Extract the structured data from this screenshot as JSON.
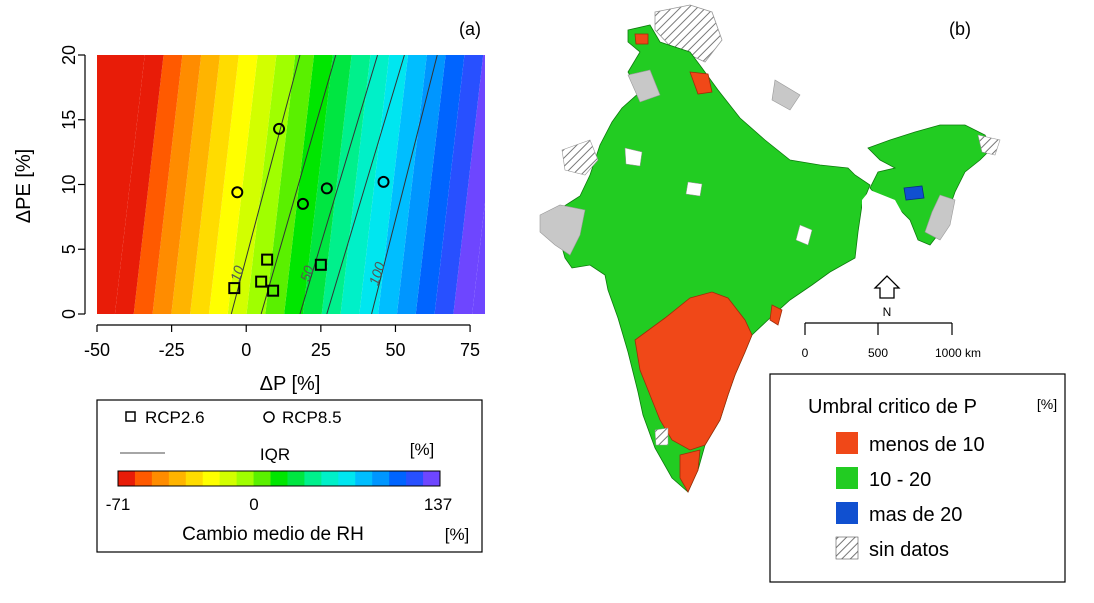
{
  "chart_data": [
    {
      "type": "contour",
      "panel_label": "(a)",
      "xlabel": "ΔP [%]",
      "ylabel": "ΔPE [%]",
      "xlim": [
        -50,
        80
      ],
      "ylim": [
        0,
        20
      ],
      "xticks": [
        "-50",
        "-25",
        "0",
        "25",
        "50",
        "75"
      ],
      "xtick_values": [
        -50,
        -25,
        0,
        25,
        50,
        75
      ],
      "yticks": [
        "0",
        "5",
        "10",
        "15",
        "20"
      ],
      "ytick_values": [
        0,
        5,
        10,
        15,
        20
      ],
      "contours": [
        {
          "label": "10",
          "x": [
            -5,
            18
          ]
        },
        {
          "label": "",
          "x": [
            5,
            30
          ]
        },
        {
          "label": "50",
          "x": [
            18,
            44
          ]
        },
        {
          "label": "",
          "x": [
            27,
            53
          ]
        },
        {
          "label": "100",
          "x": [
            42,
            64
          ]
        }
      ],
      "series": [
        {
          "name": "RCP2.6",
          "marker": "square",
          "x": [
            -4,
            5,
            7,
            9,
            25
          ],
          "y": [
            2.0,
            2.5,
            4.2,
            1.8,
            3.8
          ]
        },
        {
          "name": "RCP8.5",
          "marker": "circle",
          "x": [
            -3,
            11,
            19,
            27,
            46
          ],
          "y": [
            9.4,
            14.3,
            8.5,
            9.7,
            10.2
          ]
        }
      ],
      "legend": {
        "rcp26": "RCP2.6",
        "rcp85": "RCP8.5",
        "iqr": "IQR",
        "unit_top": "[%]",
        "scale_min": "-71",
        "scale_mid": "0",
        "scale_max": "137",
        "title": "Cambio medio de RH",
        "unit_bottom": "[%]"
      },
      "colorscale": [
        "#e81c08",
        "#ff5a00",
        "#ff8c00",
        "#ffb400",
        "#ffdc00",
        "#ffff00",
        "#d2ff00",
        "#a0ff00",
        "#5af000",
        "#00e600",
        "#00e641",
        "#00f08c",
        "#00f0c8",
        "#00e6f0",
        "#00beff",
        "#0096ff",
        "#0064ff",
        "#2850ff",
        "#6e46ff"
      ]
    },
    {
      "type": "choropleth-map",
      "panel_label": "(b)",
      "legend": {
        "title": "Umbral critico de P",
        "unit": "[%]",
        "items": [
          {
            "label": "menos de 10",
            "color": "#f04818"
          },
          {
            "label": "10 - 20",
            "color": "#22cc22"
          },
          {
            "label": "mas de 20",
            "color": "#1050d0"
          },
          {
            "label": "sin datos",
            "color": "hatch"
          }
        ]
      },
      "scalebar": {
        "labels": [
          "0",
          "500",
          "1000 km"
        ]
      },
      "north_label": "N"
    }
  ]
}
